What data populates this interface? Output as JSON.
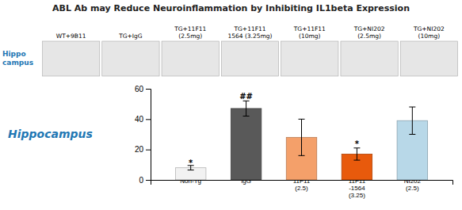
{
  "chart_data": {
    "type": "bar",
    "title": "ABL Ab may Reduce Neuroinflammation by Inhibiting IL1beta Expression",
    "ylabel": "Hippocampus",
    "categories": [
      "Non-Tg",
      "IgG",
      "11F11\n(2.5)",
      "11F11\n-1564\n(3.25)",
      "NI202\n(2.5)"
    ],
    "values": [
      8,
      47,
      28,
      17,
      39
    ],
    "errors": [
      1.5,
      5,
      12,
      4,
      9
    ],
    "colors": [
      "#f2f2f2",
      "#595959",
      "#F4A06A",
      "#E85A0C",
      "#B8D8E8"
    ],
    "ylim": [
      0,
      60
    ],
    "yticks": [
      0,
      20,
      40,
      60
    ],
    "grid": false,
    "annotations": [
      {
        "text": "*",
        "x": 0,
        "y": 9.5
      },
      {
        "text": "##",
        "x": 1,
        "y": 53
      },
      {
        "text": "*",
        "x": 3,
        "y": 22
      }
    ],
    "panel_row_label": "Hippo\ncampus",
    "panel_labels": [
      "WT+9B11",
      "TG+IgG",
      "TG+11F11\n(2.5mg)",
      "TG+11F11\n1564 (3.25mg)",
      "TG+11F11\n(10mg)",
      "TG+NI202\n(2.5mg)",
      "TG+NI202\n(10mg)"
    ]
  }
}
